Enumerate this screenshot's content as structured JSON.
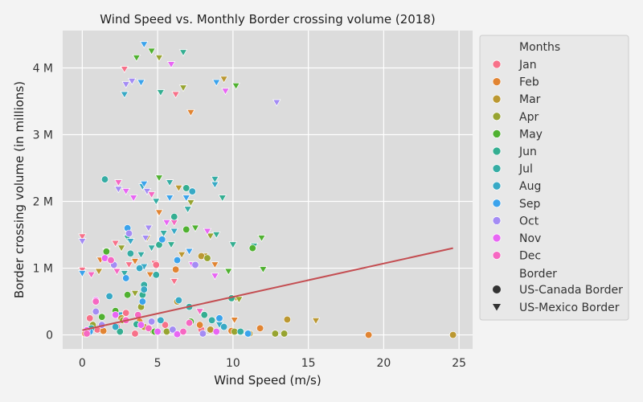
{
  "chart_data": {
    "type": "scatter",
    "title": "Wind Speed vs. Monthly Border crossing volume (2018)",
    "xlabel": "Wind Speed (m/s)",
    "ylabel": "Border crossing volume (in millions)",
    "xlim": [
      -1.3,
      25.9
    ],
    "ylim": [
      -0.21,
      4.56
    ],
    "xticks": [
      {
        "value": 0,
        "label": "0"
      },
      {
        "value": 5,
        "label": "5"
      },
      {
        "value": 10,
        "label": "10"
      },
      {
        "value": 15,
        "label": "15"
      },
      {
        "value": 20,
        "label": "20"
      },
      {
        "value": 25,
        "label": "25"
      }
    ],
    "yticks": [
      {
        "value": 0,
        "label": "0"
      },
      {
        "value": 1,
        "label": "1 M"
      },
      {
        "value": 2,
        "label": "2 M"
      },
      {
        "value": 3,
        "label": "3 M"
      },
      {
        "value": 4,
        "label": "4 M"
      }
    ],
    "grid": true,
    "legend": {
      "placement": "right",
      "hue_title": "Months",
      "style_title": "Border",
      "months": [
        {
          "label": "Jan",
          "color": "#f77189"
        },
        {
          "label": "Feb",
          "color": "#e18432"
        },
        {
          "label": "Mar",
          "color": "#bb9832"
        },
        {
          "label": "Apr",
          "color": "#97a431"
        },
        {
          "label": "May",
          "color": "#50b131"
        },
        {
          "label": "Jun",
          "color": "#34ae91"
        },
        {
          "label": "Jul",
          "color": "#36ada4"
        },
        {
          "label": "Aug",
          "color": "#38a9c5"
        },
        {
          "label": "Sep",
          "color": "#3ba3ec"
        },
        {
          "label": "Oct",
          "color": "#a48cf4"
        },
        {
          "label": "Nov",
          "color": "#e866f4"
        },
        {
          "label": "Dec",
          "color": "#f668c2"
        }
      ],
      "borders": [
        {
          "label": "US-Canada Border",
          "marker": "circle"
        },
        {
          "label": "US-Mexico Border",
          "marker": "triangle-down"
        }
      ]
    },
    "trend_line": {
      "x": [
        0,
        24.6
      ],
      "y": [
        0.07,
        1.3
      ],
      "color": "#c44e52"
    },
    "series": [
      {
        "month": "Jan",
        "border": "US-Mexico Border",
        "points": [
          [
            2.8,
            3.98
          ],
          [
            6.2,
            3.6
          ],
          [
            0,
            1.47
          ],
          [
            0,
            0.97
          ],
          [
            2.2,
            1.37
          ],
          [
            4.8,
            1.07
          ],
          [
            6.1,
            0.8
          ],
          [
            3.1,
            1.05
          ]
        ]
      },
      {
        "month": "Feb",
        "border": "US-Mexico Border",
        "points": [
          [
            7.2,
            3.33
          ],
          [
            5.1,
            1.83
          ],
          [
            4.5,
            0.9
          ],
          [
            8.8,
            1.05
          ],
          [
            3.5,
            1.1
          ],
          [
            1.2,
            1.12
          ],
          [
            9.3,
            0.12
          ],
          [
            10.1,
            0.22
          ]
        ]
      },
      {
        "month": "Mar",
        "border": "US-Mexico Border",
        "points": [
          [
            9.4,
            3.83
          ],
          [
            6.4,
            2.2
          ],
          [
            6.6,
            1.2
          ],
          [
            15.5,
            0.21
          ],
          [
            10.2,
            0.55
          ],
          [
            8.1,
            1.18
          ],
          [
            4.3,
            1.45
          ],
          [
            1.1,
            0.95
          ]
        ]
      },
      {
        "month": "Apr",
        "border": "US-Mexico Border",
        "points": [
          [
            5.1,
            4.15
          ],
          [
            6.7,
            3.7
          ],
          [
            7.2,
            1.98
          ],
          [
            8.5,
            1.48
          ],
          [
            10.4,
            0.53
          ],
          [
            4.6,
            0.05
          ],
          [
            3.5,
            0.62
          ],
          [
            2.6,
            1.3
          ]
        ]
      },
      {
        "month": "May",
        "border": "US-Mexico Border",
        "points": [
          [
            4.6,
            4.25
          ],
          [
            5.1,
            2.35
          ],
          [
            3.6,
            4.15
          ],
          [
            7.5,
            1.6
          ],
          [
            11.9,
            1.45
          ],
          [
            10.2,
            3.73
          ],
          [
            12.0,
            0.98
          ],
          [
            9.7,
            0.95
          ]
        ]
      },
      {
        "month": "Jun",
        "border": "US-Mexico Border",
        "points": [
          [
            6.7,
            4.23
          ],
          [
            9.3,
            2.05
          ],
          [
            5.2,
            3.63
          ],
          [
            8.9,
            1.5
          ],
          [
            10.0,
            1.35
          ],
          [
            11.4,
            1.33
          ],
          [
            5.9,
            1.35
          ],
          [
            3.0,
            1.45
          ]
        ]
      },
      {
        "month": "Jul",
        "border": "US-Mexico Border",
        "points": [
          [
            5.8,
            2.28
          ],
          [
            8.8,
            2.33
          ],
          [
            4.9,
            2.0
          ],
          [
            7.0,
            1.88
          ],
          [
            5.4,
            1.52
          ],
          [
            4.6,
            1.3
          ],
          [
            3.9,
            1.2
          ],
          [
            2.8,
            0.92
          ]
        ]
      },
      {
        "month": "Aug",
        "border": "US-Mexico Border",
        "points": [
          [
            2.8,
            3.6
          ],
          [
            8.8,
            2.25
          ],
          [
            4.0,
            2.22
          ],
          [
            6.1,
            1.55
          ],
          [
            3.2,
            1.4
          ],
          [
            4.1,
            1.02
          ],
          [
            9.1,
            0.15
          ],
          [
            2.5,
            0.3
          ]
        ]
      },
      {
        "month": "Sep",
        "border": "US-Mexico Border",
        "points": [
          [
            4.1,
            4.35
          ],
          [
            3.9,
            3.78
          ],
          [
            8.9,
            3.78
          ],
          [
            4.1,
            2.26
          ],
          [
            5.8,
            2.05
          ],
          [
            6.9,
            2.05
          ],
          [
            0,
            0.92
          ],
          [
            7.1,
            1.25
          ]
        ]
      },
      {
        "month": "Oct",
        "border": "US-Mexico Border",
        "points": [
          [
            3.3,
            3.8
          ],
          [
            2.9,
            3.75
          ],
          [
            4.3,
            2.15
          ],
          [
            4.2,
            1.45
          ],
          [
            0,
            1.4
          ],
          [
            2.4,
            2.18
          ],
          [
            4.4,
            1.6
          ],
          [
            12.9,
            3.48
          ]
        ]
      },
      {
        "month": "Nov",
        "border": "US-Mexico Border",
        "points": [
          [
            5.9,
            4.05
          ],
          [
            9.5,
            3.65
          ],
          [
            3.4,
            2.05
          ],
          [
            2.9,
            2.15
          ],
          [
            5.6,
            1.68
          ],
          [
            8.3,
            1.55
          ],
          [
            8.8,
            0.88
          ],
          [
            7.3,
            1.05
          ]
        ]
      },
      {
        "month": "Dec",
        "border": "US-Mexico Border",
        "points": [
          [
            2.4,
            2.28
          ],
          [
            4.6,
            2.1
          ],
          [
            6.1,
            1.68
          ],
          [
            3.0,
            1.55
          ],
          [
            1.6,
            1.25
          ],
          [
            2.3,
            0.95
          ],
          [
            0.6,
            0.9
          ],
          [
            7.8,
            0.35
          ]
        ]
      },
      {
        "month": "Jan",
        "border": "US-Canada Border",
        "points": [
          [
            4.9,
            1.05
          ],
          [
            1.0,
            0.08
          ],
          [
            2.3,
            0.12
          ],
          [
            3.5,
            0.02
          ],
          [
            0.5,
            0.25
          ],
          [
            7.9,
            0.08
          ],
          [
            5.5,
            0.15
          ],
          [
            2.9,
            0.33
          ]
        ]
      },
      {
        "month": "Feb",
        "border": "US-Canada Border",
        "points": [
          [
            19.0,
            0.0
          ],
          [
            6.2,
            0.98
          ],
          [
            7.8,
            0.15
          ],
          [
            3.8,
            0.2
          ],
          [
            11.8,
            0.1
          ],
          [
            1.4,
            0.06
          ],
          [
            0.2,
            0.02
          ],
          [
            9.9,
            0.06
          ]
        ]
      },
      {
        "month": "Mar",
        "border": "US-Canada Border",
        "points": [
          [
            24.6,
            0.0
          ],
          [
            13.6,
            0.23
          ],
          [
            7.9,
            1.18
          ],
          [
            6.3,
            0.5
          ],
          [
            2.6,
            0.25
          ],
          [
            11.1,
            0.02
          ],
          [
            4.1,
            0.12
          ],
          [
            8.5,
            0.08
          ]
        ]
      },
      {
        "month": "Apr",
        "border": "US-Canada Border",
        "points": [
          [
            13.4,
            0.02
          ],
          [
            8.3,
            1.15
          ],
          [
            10.1,
            0.05
          ],
          [
            3.9,
            0.42
          ],
          [
            2.7,
            0.22
          ],
          [
            0.7,
            0.15
          ],
          [
            12.8,
            0.02
          ],
          [
            5.6,
            0.05
          ]
        ]
      },
      {
        "month": "May",
        "border": "US-Canada Border",
        "points": [
          [
            11.3,
            1.3
          ],
          [
            6.9,
            1.58
          ],
          [
            1.6,
            1.25
          ],
          [
            3.0,
            0.6
          ],
          [
            2.2,
            0.36
          ],
          [
            7.2,
            0.2
          ],
          [
            4.8,
            0.05
          ],
          [
            1.3,
            0.27
          ]
        ]
      },
      {
        "month": "Jun",
        "border": "US-Canada Border",
        "points": [
          [
            6.1,
            1.77
          ],
          [
            6.9,
            2.2
          ],
          [
            5.1,
            1.35
          ],
          [
            4.0,
            0.6
          ],
          [
            9.9,
            0.55
          ],
          [
            2.5,
            0.05
          ],
          [
            8.1,
            0.3
          ],
          [
            3.6,
            0.16
          ]
        ]
      },
      {
        "month": "Jul",
        "border": "US-Canada Border",
        "points": [
          [
            1.5,
            2.33
          ],
          [
            3.2,
            1.22
          ],
          [
            4.9,
            0.9
          ],
          [
            4.1,
            0.75
          ],
          [
            7.1,
            0.42
          ],
          [
            8.6,
            0.22
          ],
          [
            0.6,
            0.1
          ],
          [
            10.5,
            0.05
          ]
        ]
      },
      {
        "month": "Aug",
        "border": "US-Canada Border",
        "points": [
          [
            7.3,
            2.15
          ],
          [
            3.8,
            1.0
          ],
          [
            4.1,
            0.68
          ],
          [
            6.4,
            0.52
          ],
          [
            1.8,
            0.58
          ],
          [
            2.2,
            0.12
          ],
          [
            5.2,
            0.22
          ],
          [
            9.4,
            0.12
          ]
        ]
      },
      {
        "month": "Sep",
        "border": "US-Canada Border",
        "points": [
          [
            3.0,
            1.6
          ],
          [
            5.3,
            1.43
          ],
          [
            6.3,
            1.12
          ],
          [
            2.9,
            0.85
          ],
          [
            4.0,
            0.5
          ],
          [
            9.1,
            0.25
          ],
          [
            0.5,
            0.05
          ],
          [
            11.0,
            0.02
          ]
        ]
      },
      {
        "month": "Oct",
        "border": "US-Canada Border",
        "points": [
          [
            7.5,
            1.05
          ],
          [
            3.1,
            1.52
          ],
          [
            2.1,
            1.05
          ],
          [
            0.9,
            0.35
          ],
          [
            4.6,
            0.2
          ],
          [
            6.0,
            0.08
          ],
          [
            8.0,
            0.02
          ],
          [
            1.3,
            0.15
          ]
        ]
      },
      {
        "month": "Nov",
        "border": "US-Canada Border",
        "points": [
          [
            1.5,
            1.15
          ],
          [
            0.9,
            0.52
          ],
          [
            2.2,
            0.3
          ],
          [
            3.9,
            0.15
          ],
          [
            5.0,
            0.05
          ],
          [
            8.9,
            0.05
          ],
          [
            6.3,
            0.01
          ],
          [
            0.3,
            0.07
          ]
        ]
      },
      {
        "month": "Dec",
        "border": "US-Canada Border",
        "points": [
          [
            1.9,
            1.12
          ],
          [
            0.9,
            0.5
          ],
          [
            2.9,
            0.22
          ],
          [
            4.4,
            0.1
          ],
          [
            6.7,
            0.05
          ],
          [
            0.3,
            0.02
          ],
          [
            7.1,
            0.18
          ],
          [
            3.7,
            0.3
          ]
        ]
      }
    ]
  }
}
